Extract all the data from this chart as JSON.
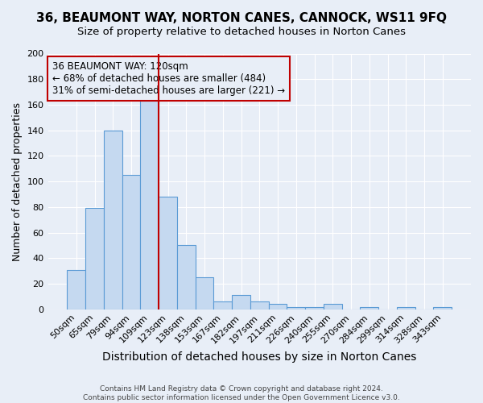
{
  "title1": "36, BEAUMONT WAY, NORTON CANES, CANNOCK, WS11 9FQ",
  "title2": "Size of property relative to detached houses in Norton Canes",
  "xlabel": "Distribution of detached houses by size in Norton Canes",
  "ylabel": "Number of detached properties",
  "footnote1": "Contains HM Land Registry data © Crown copyright and database right 2024.",
  "footnote2": "Contains public sector information licensed under the Open Government Licence v3.0.",
  "categories": [
    "50sqm",
    "65sqm",
    "79sqm",
    "94sqm",
    "109sqm",
    "123sqm",
    "138sqm",
    "153sqm",
    "167sqm",
    "182sqm",
    "197sqm",
    "211sqm",
    "226sqm",
    "240sqm",
    "255sqm",
    "270sqm",
    "284sqm",
    "299sqm",
    "314sqm",
    "328sqm",
    "343sqm"
  ],
  "values": [
    31,
    79,
    140,
    105,
    163,
    88,
    50,
    25,
    6,
    11,
    6,
    4,
    2,
    2,
    4,
    0,
    2,
    0,
    2,
    0,
    2
  ],
  "bar_color": "#c5d9f0",
  "bar_edge_color": "#5b9bd5",
  "vline_color": "#c00000",
  "vline_index": 5,
  "annotation_text": "36 BEAUMONT WAY: 120sqm\n← 68% of detached houses are smaller (484)\n31% of semi-detached houses are larger (221) →",
  "annotation_box_edge": "#c00000",
  "ylim": [
    0,
    200
  ],
  "yticks": [
    0,
    20,
    40,
    60,
    80,
    100,
    120,
    140,
    160,
    180,
    200
  ],
  "background_color": "#e8eef7",
  "grid_color": "#ffffff",
  "title1_fontsize": 11,
  "title2_fontsize": 9.5,
  "xlabel_fontsize": 10,
  "ylabel_fontsize": 9,
  "tick_fontsize": 8,
  "annotation_fontsize": 8.5
}
